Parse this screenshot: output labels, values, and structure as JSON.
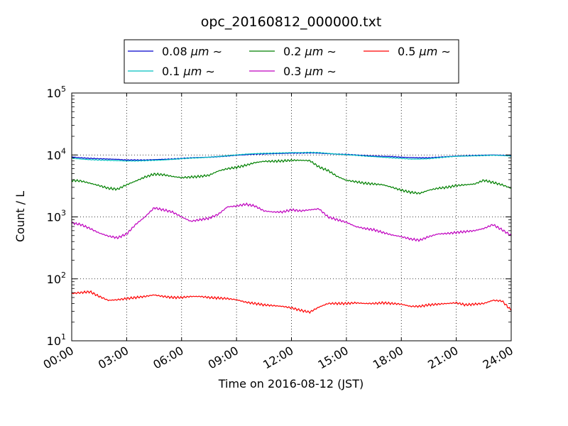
{
  "chart_data": {
    "type": "line",
    "title": "opc_20160812_000000.txt",
    "xlabel": "Time on 2016-08-12 (JST)",
    "ylabel": "Count / L",
    "yscale": "log",
    "ylim": [
      10,
      100000
    ],
    "xlim": [
      0,
      24
    ],
    "grid": true,
    "legend_position": "top-center",
    "x_ticks": [
      "00:00",
      "03:00",
      "06:00",
      "09:00",
      "12:00",
      "15:00",
      "18:00",
      "21:00",
      "24:00"
    ],
    "y_ticks": [
      {
        "base": "10",
        "exp": "1"
      },
      {
        "base": "10",
        "exp": "2"
      },
      {
        "base": "10",
        "exp": "3"
      },
      {
        "base": "10",
        "exp": "4"
      },
      {
        "base": "10",
        "exp": "5"
      }
    ],
    "legend": [
      {
        "size": "0.08",
        "unit": "μm",
        "suffix": "∼",
        "color": "#0000cc"
      },
      {
        "size": "0.1",
        "unit": "μm",
        "suffix": "∼",
        "color": "#00bfbf"
      },
      {
        "size": "0.2",
        "unit": "μm",
        "suffix": "∼",
        "color": "#008000"
      },
      {
        "size": "0.3",
        "unit": "μm",
        "suffix": "∼",
        "color": "#bf00bf"
      },
      {
        "size": "0.5",
        "unit": "μm",
        "suffix": "∼",
        "color": "#ff0000"
      }
    ],
    "x": [
      0,
      0.5,
      1,
      1.5,
      2,
      2.5,
      3,
      3.5,
      4,
      4.5,
      5,
      5.5,
      6,
      6.5,
      7,
      7.5,
      8,
      8.5,
      9,
      9.5,
      10,
      10.5,
      11,
      11.5,
      12,
      12.5,
      13,
      13.5,
      14,
      14.5,
      15,
      15.5,
      16,
      16.5,
      17,
      17.5,
      18,
      18.5,
      19,
      19.5,
      20,
      20.5,
      21,
      21.5,
      22,
      22.5,
      23,
      23.5,
      24
    ],
    "series": [
      {
        "name": "0.08 μm ∼",
        "color": "#0000cc",
        "values": [
          9300,
          9000,
          8800,
          8700,
          8600,
          8500,
          8300,
          8300,
          8300,
          8400,
          8500,
          8600,
          8800,
          9000,
          9100,
          9200,
          9400,
          9600,
          9900,
          10100,
          10300,
          10400,
          10500,
          10600,
          10700,
          10700,
          10800,
          10700,
          10500,
          10300,
          10200,
          10000,
          9800,
          9600,
          9500,
          9400,
          9200,
          9100,
          9000,
          9000,
          9200,
          9400,
          9600,
          9700,
          9800,
          9900,
          10000,
          9900,
          9700
        ]
      },
      {
        "name": "0.1 μm ∼",
        "color": "#00bfbf",
        "values": [
          8900,
          8600,
          8400,
          8300,
          8200,
          8100,
          8000,
          8000,
          8100,
          8200,
          8300,
          8500,
          8700,
          8900,
          9000,
          9200,
          9400,
          9700,
          10000,
          10300,
          10500,
          10600,
          10700,
          10800,
          10900,
          10900,
          11000,
          10900,
          10600,
          10300,
          10100,
          9900,
          9600,
          9400,
          9200,
          9000,
          8800,
          8600,
          8600,
          8700,
          9000,
          9300,
          9500,
          9600,
          9700,
          9800,
          9900,
          9800,
          9600
        ]
      },
      {
        "name": "0.2 μm ∼",
        "color": "#008000",
        "values": [
          3900,
          3800,
          3500,
          3200,
          2900,
          2800,
          3300,
          3800,
          4400,
          4900,
          4800,
          4500,
          4300,
          4400,
          4500,
          4700,
          5500,
          6000,
          6300,
          6800,
          7500,
          7900,
          7900,
          8000,
          8200,
          8200,
          8100,
          6400,
          5600,
          4500,
          3900,
          3700,
          3500,
          3400,
          3300,
          3000,
          2700,
          2500,
          2400,
          2700,
          2900,
          3000,
          3200,
          3300,
          3400,
          3900,
          3600,
          3300,
          2900
        ]
      },
      {
        "name": "0.3 μm ∼",
        "color": "#bf00bf",
        "values": [
          800,
          750,
          650,
          550,
          490,
          460,
          530,
          760,
          1000,
          1400,
          1300,
          1200,
          1000,
          850,
          900,
          950,
          1100,
          1450,
          1500,
          1600,
          1500,
          1250,
          1200,
          1200,
          1300,
          1250,
          1300,
          1350,
          1000,
          900,
          820,
          700,
          650,
          620,
          560,
          510,
          480,
          440,
          420,
          480,
          530,
          540,
          560,
          580,
          600,
          650,
          750,
          620,
          500
        ]
      },
      {
        "name": "0.5 μm ∼",
        "color": "#ff0000",
        "values": [
          58,
          60,
          62,
          52,
          45,
          46,
          48,
          50,
          52,
          55,
          52,
          50,
          50,
          52,
          52,
          50,
          49,
          48,
          46,
          42,
          40,
          38,
          37,
          36,
          34,
          31,
          29,
          35,
          40,
          40,
          40,
          41,
          40,
          40,
          41,
          40,
          39,
          36,
          36,
          38,
          39,
          40,
          41,
          38,
          39,
          40,
          45,
          44,
          31
        ]
      }
    ]
  }
}
